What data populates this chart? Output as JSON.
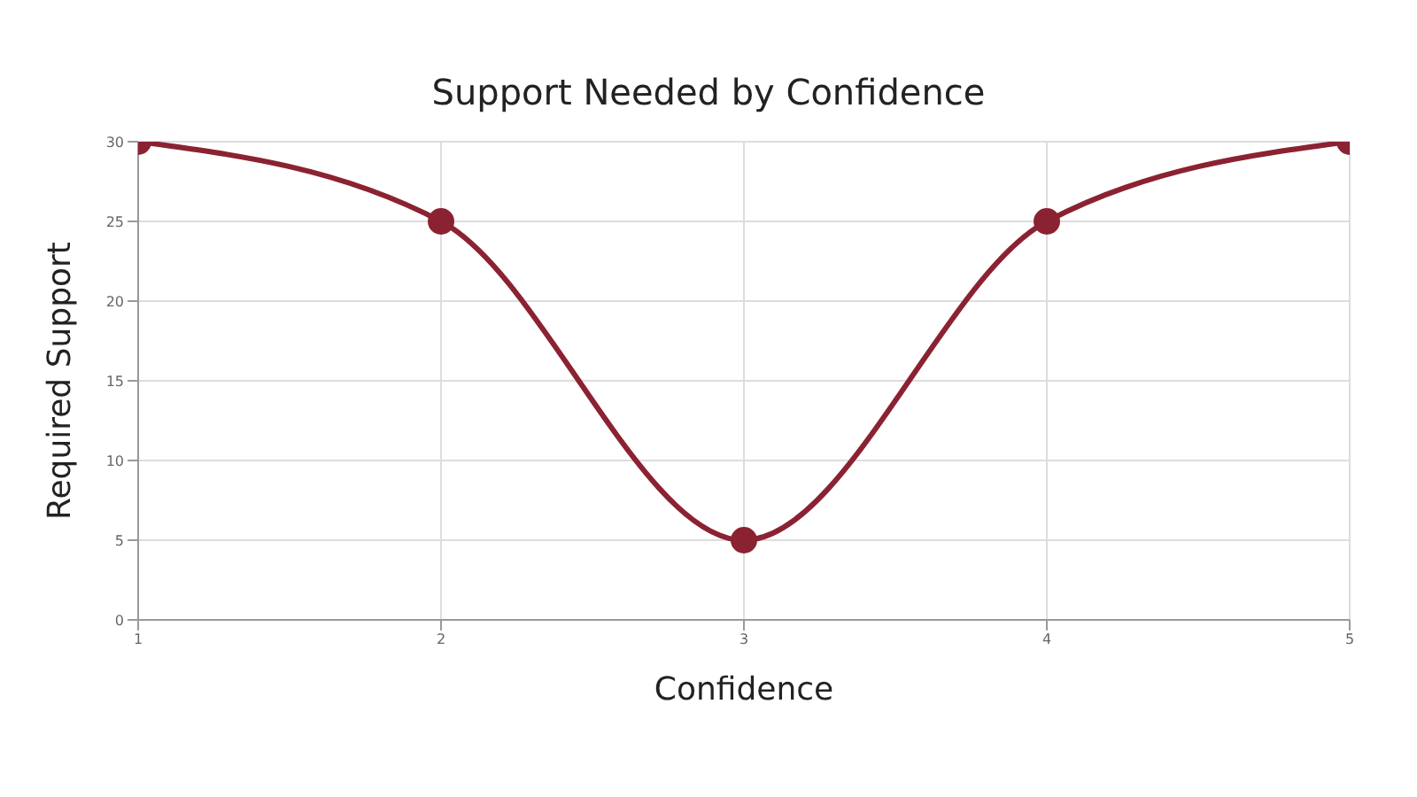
{
  "chart_data": {
    "type": "line",
    "title": "Support Needed by Confidence",
    "xlabel": "Confidence",
    "ylabel": "Required Support",
    "x": [
      1,
      2,
      3,
      4,
      5
    ],
    "series": [
      {
        "color": "#8b2232",
        "values": [
          30,
          25,
          5,
          25,
          30
        ]
      }
    ],
    "xlim": [
      1,
      5
    ],
    "xticks": [
      1,
      2,
      3,
      4,
      5
    ],
    "ylim": [
      0,
      30
    ],
    "yticks": [
      0,
      5,
      10,
      15,
      20,
      25,
      30
    ],
    "grid": true,
    "marker": "circle"
  }
}
